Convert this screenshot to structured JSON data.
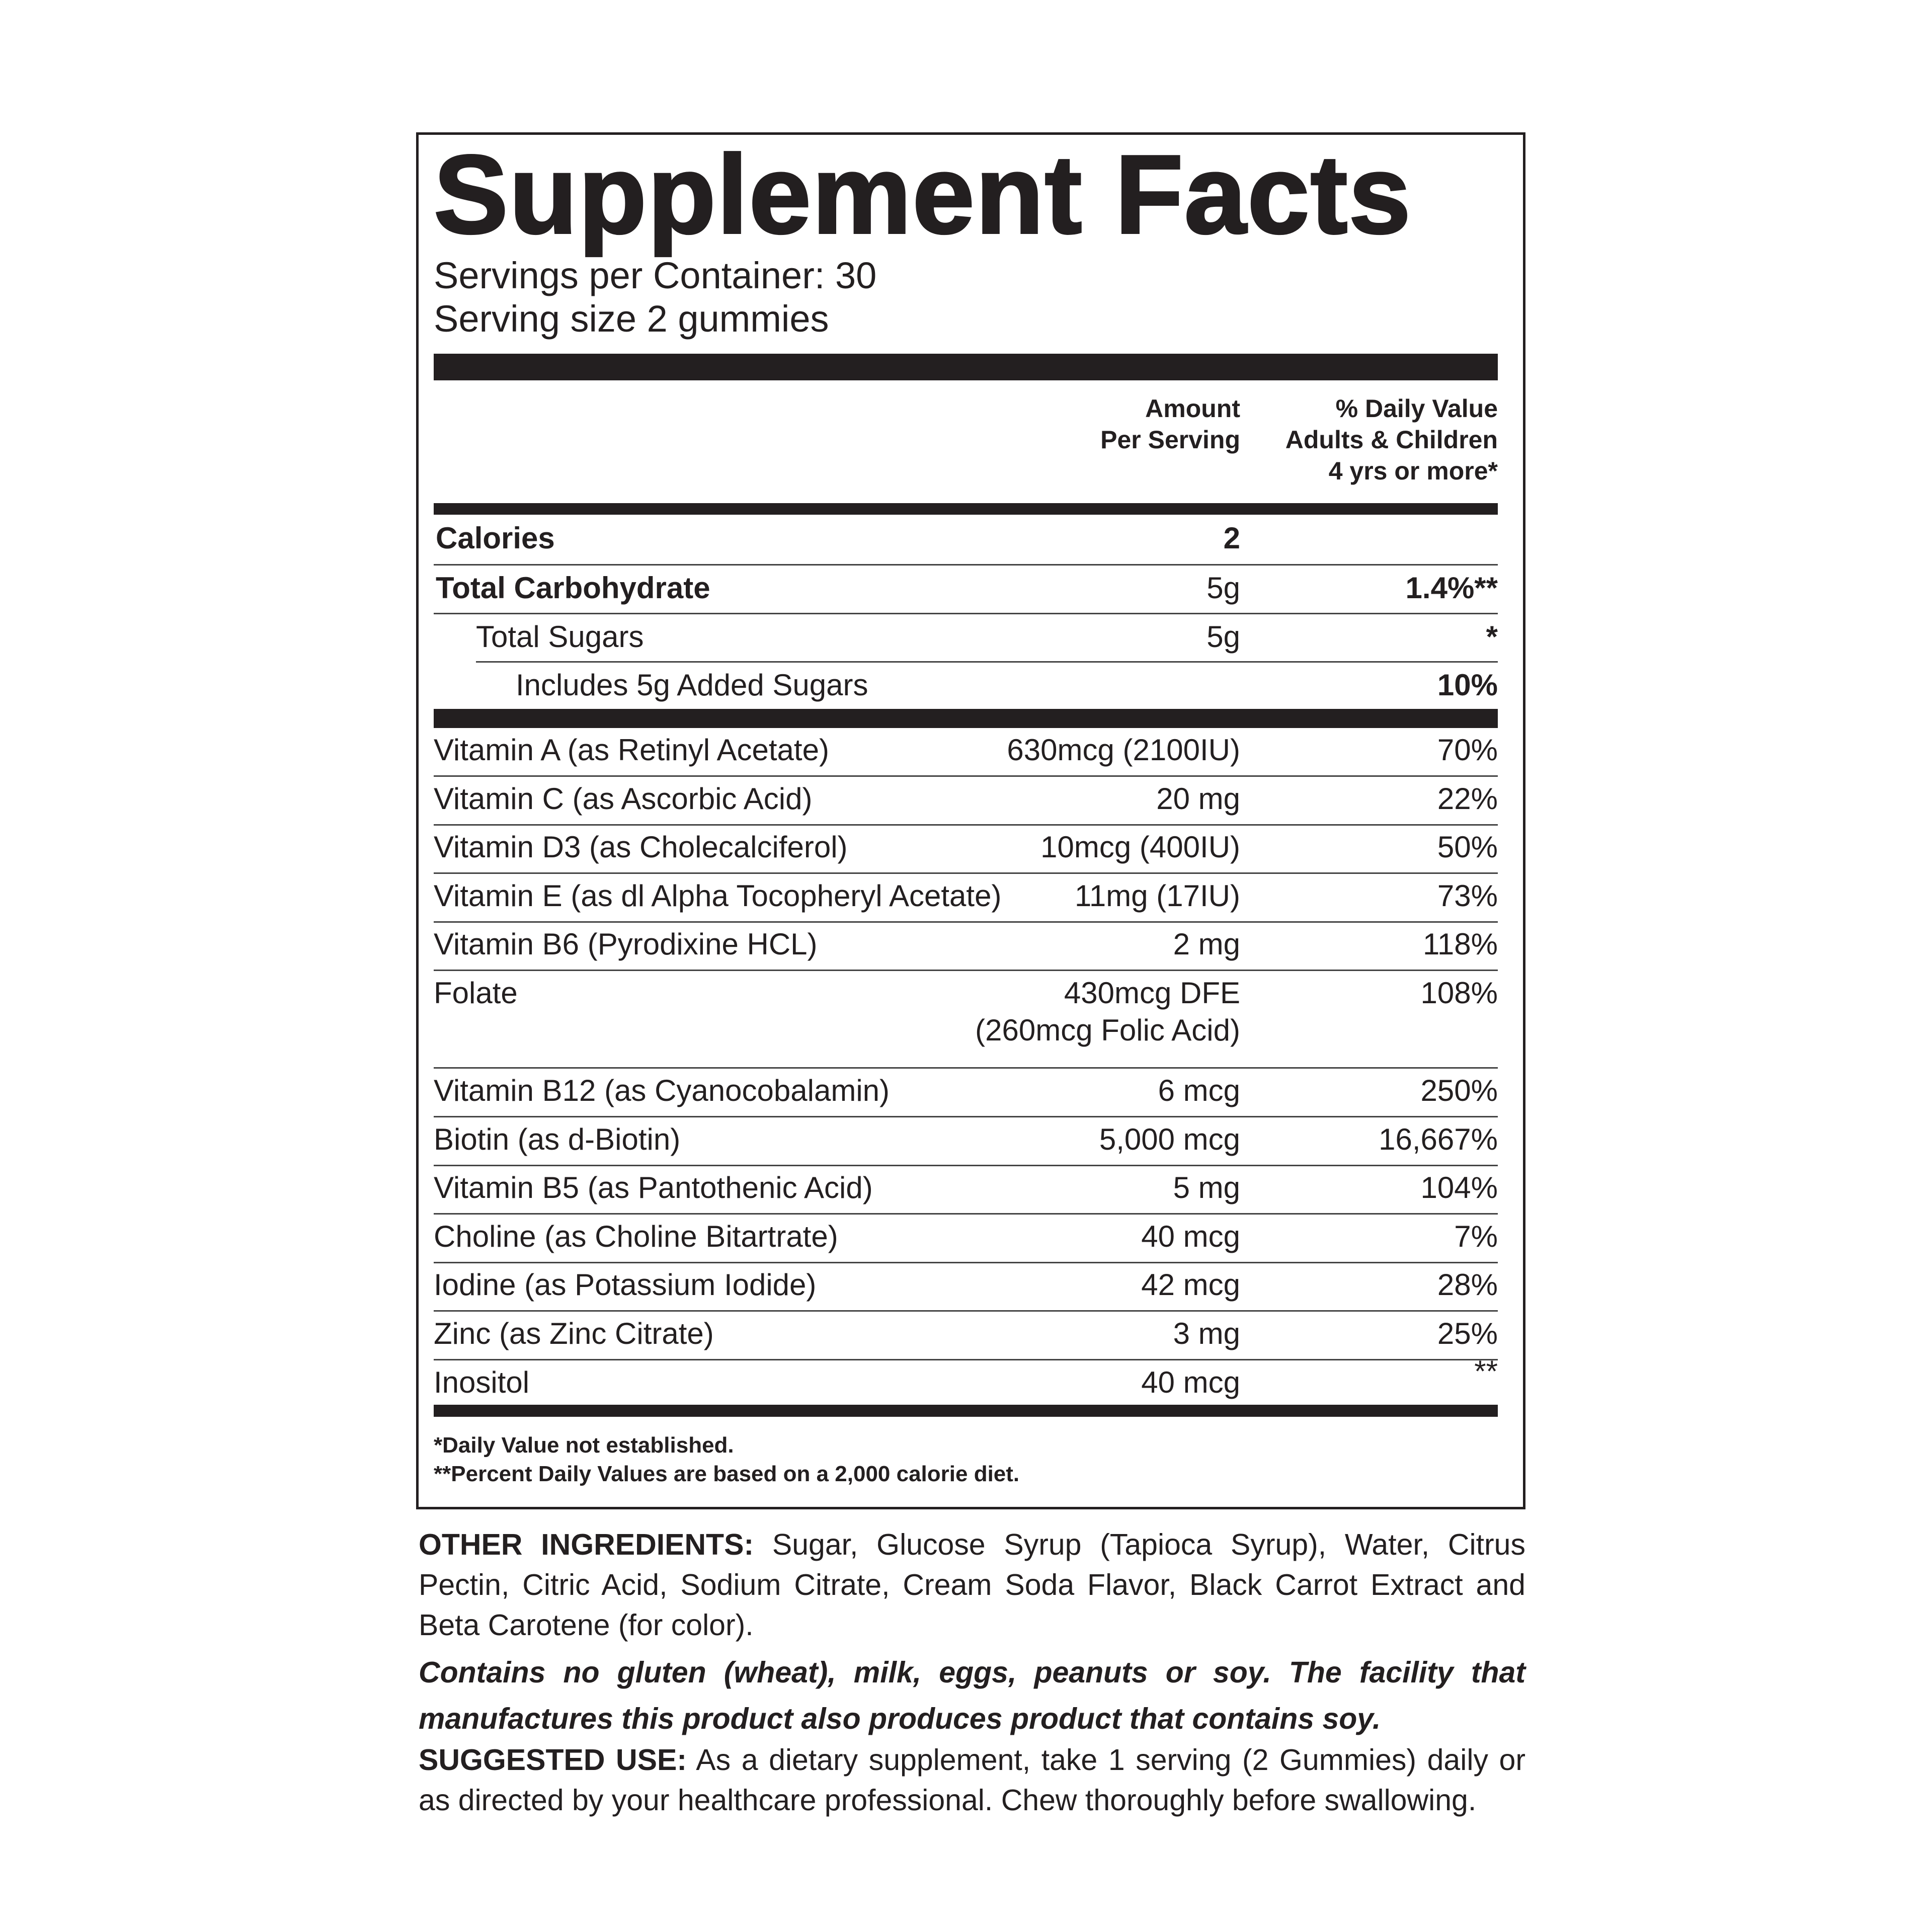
{
  "title": "Supplement Facts",
  "servings_per_container": "Servings per Container: 30",
  "serving_size": "Serving size 2 gummies",
  "header": {
    "amount_line1": "Amount",
    "amount_line2": "Per Serving",
    "dv_line1": "% Daily Value",
    "dv_line2": "Adults & Children",
    "dv_line3": "4 yrs or more*"
  },
  "macros": [
    {
      "name": "Calories",
      "amount": "2",
      "dv": ""
    },
    {
      "name": "Total Carbohydrate",
      "amount": "5g",
      "dv": "1.4%**"
    },
    {
      "name": "Total Sugars",
      "amount": "5g",
      "dv": "*"
    },
    {
      "name": "Includes 5g Added Sugars",
      "amount": "",
      "dv": "10%"
    }
  ],
  "nutrients": [
    {
      "name": "Vitamin A (as Retinyl Acetate)",
      "amount": "630mcg (2100IU)",
      "dv": "70%"
    },
    {
      "name": "Vitamin C (as Ascorbic Acid)",
      "amount": "20 mg",
      "dv": "22%"
    },
    {
      "name": "Vitamin D3 (as Cholecalciferol)",
      "amount": "10mcg (400IU)",
      "dv": "50%"
    },
    {
      "name": "Vitamin E (as dl Alpha Tocopheryl Acetate)",
      "amount": "11mg (17IU)",
      "dv": "73%"
    },
    {
      "name": "Vitamin B6 (Pyrodixine HCL)",
      "amount": "2 mg",
      "dv": "118%"
    },
    {
      "name": "Folate",
      "amount": "430mcg DFE",
      "amount_line2": "(260mcg Folic Acid)",
      "dv": "108%"
    },
    {
      "name": "Vitamin B12 (as Cyanocobalamin)",
      "amount": "6 mcg",
      "dv": "250%"
    },
    {
      "name": "Biotin (as d-Biotin)",
      "amount": "5,000 mcg",
      "dv": "16,667%"
    },
    {
      "name": "Vitamin B5 (as Pantothenic Acid)",
      "amount": "5 mg",
      "dv": "104%"
    },
    {
      "name": "Choline (as Choline Bitartrate)",
      "amount": "40 mcg",
      "dv": "7%"
    },
    {
      "name": "Iodine (as Potassium Iodide)",
      "amount": "42 mcg",
      "dv": "28%"
    },
    {
      "name": "Zinc (as Zinc Citrate)",
      "amount": "3 mg",
      "dv": "25%"
    },
    {
      "name": "Inositol",
      "amount": "40 mcg",
      "dv": "**"
    }
  ],
  "footnotes": [
    "*Daily Value not established.",
    "**Percent Daily Values are based on a 2,000 calorie diet."
  ],
  "other_ingredients": {
    "label": "OTHER INGREDIENTS:",
    "text": " Sugar, Glucose Syrup (Tapioca Syrup), Water, Citrus Pectin, Citric Acid, Sodium Citrate, Cream Soda Flavor, Black Carrot Extract and Beta Carotene (for color)."
  },
  "allergen_statement": "Contains no gluten (wheat), milk, eggs, peanuts or soy. The facility that manufactures this product also produces product that contains soy.",
  "suggested_use": {
    "label": "SUGGESTED USE:",
    "text": " As a dietary supplement, take 1 serving (2 Gummies) daily or as directed by your healthcare professional. Chew thoroughly before swallowing."
  }
}
